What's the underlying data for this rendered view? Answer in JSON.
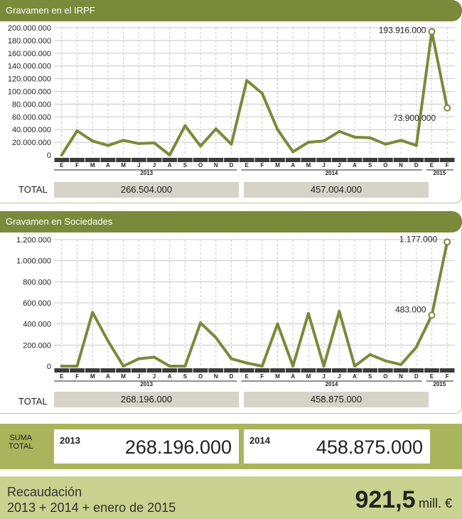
{
  "chart_data": [
    {
      "type": "line",
      "title": "Gravamen en el IRPF",
      "months": [
        "E",
        "F",
        "M",
        "A",
        "M",
        "J",
        "J",
        "A",
        "S",
        "O",
        "N",
        "D",
        "E",
        "F",
        "M",
        "A",
        "M",
        "J",
        "J",
        "A",
        "S",
        "O",
        "N",
        "D",
        "E",
        "F"
      ],
      "years": [
        "2013",
        "2014",
        "2015"
      ],
      "yticks": [
        "200.000.000",
        "180.000.000",
        "160.000.000",
        "140.000.000",
        "120.000.000",
        "100.000.000",
        "80.000.000",
        "60.000.000",
        "40.000.000",
        "20.000.000",
        "0"
      ],
      "ylim": [
        0,
        200000000
      ],
      "values": [
        0,
        38000000,
        22000000,
        15000000,
        23000000,
        18000000,
        19000000,
        0,
        46000000,
        14000000,
        41000000,
        17000000,
        117000000,
        97000000,
        40000000,
        5000000,
        20000000,
        22000000,
        37000000,
        28000000,
        27000000,
        17000000,
        23000000,
        15000000,
        193916000,
        73900000
      ],
      "annotations": [
        {
          "text": "193.916.000",
          "index": 24
        },
        {
          "text": "73.900.000",
          "index": 25
        }
      ],
      "color": "#7b8a3a"
    },
    {
      "type": "line",
      "title": "Gravamen en Sociedades",
      "months": [
        "E",
        "F",
        "M",
        "A",
        "M",
        "J",
        "J",
        "A",
        "S",
        "O",
        "N",
        "D",
        "E",
        "F",
        "M",
        "A",
        "M",
        "J",
        "J",
        "A",
        "S",
        "O",
        "N",
        "D",
        "E",
        "F"
      ],
      "years": [
        "2013",
        "2014",
        "2015"
      ],
      "yticks": [
        "1.200.000",
        "1.000.000",
        "800.000",
        "600.000",
        "400.000",
        "200.000",
        "0"
      ],
      "ylim": [
        0,
        1200000
      ],
      "values": [
        0,
        0,
        510000,
        240000,
        0,
        70000,
        85000,
        0,
        0,
        410000,
        270000,
        70000,
        30000,
        0,
        400000,
        0,
        500000,
        0,
        520000,
        0,
        110000,
        50000,
        15000,
        180000,
        483000,
        1177000
      ],
      "annotations": [
        {
          "text": "1.177.000",
          "index": 25
        },
        {
          "text": "483.000",
          "index": 24
        }
      ],
      "color": "#7b8a3a"
    }
  ],
  "totals": {
    "label": "TOTAL",
    "irpf_2013": "266.504.000",
    "irpf_2014": "457.004.000",
    "soc_2013": "268.196.000",
    "soc_2014": "458.875.000"
  },
  "suma": {
    "label_line1": "SUMA",
    "label_line2": "TOTAL",
    "y2013": "2013",
    "v2013": "268.196.000",
    "y2014": "2014",
    "v2014": "458.875.000"
  },
  "recaudacion": {
    "line1": "Recaudación",
    "line2": "2013 + 2014 + enero de 2015",
    "value": "921,5",
    "unit": "mill. €"
  }
}
